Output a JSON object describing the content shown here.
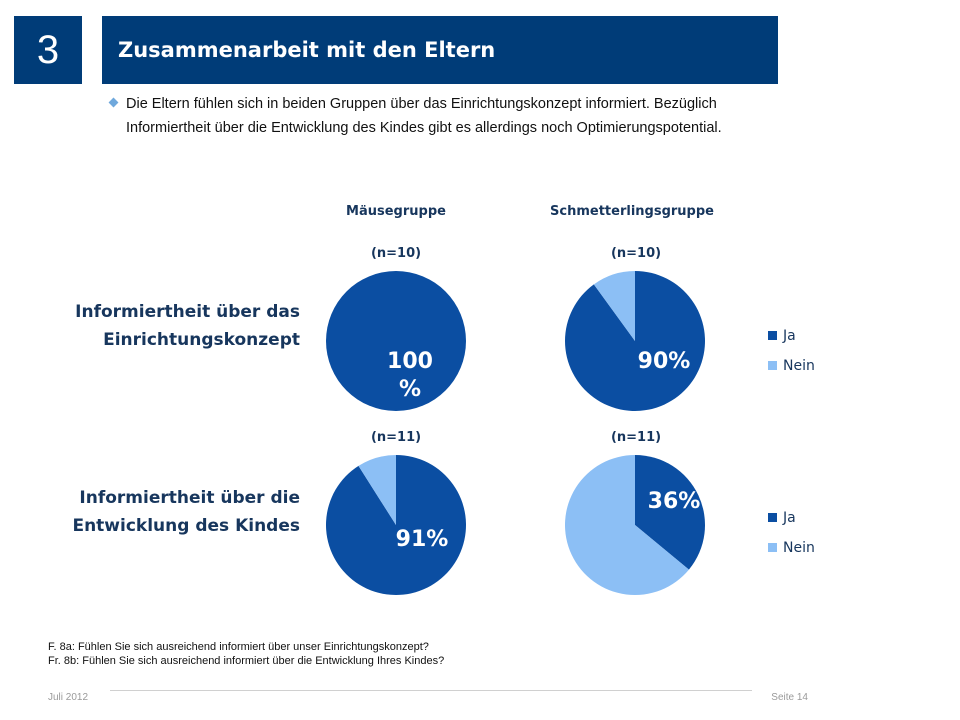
{
  "slide": {
    "number": "3",
    "title": "Zusammenarbeit mit den Eltern",
    "bullet": "Die Eltern fühlen sich in beiden Gruppen über das Einrichtungskonzept informiert. Bezüglich Informiertheit über die Entwicklung des Kindes gibt es allerdings noch Optimierungspotential.",
    "footnote_line1": "F. 8a:  Fühlen Sie sich ausreichend informiert über unser Einrichtungskonzept?",
    "footnote_line2": "Fr. 8b: Fühlen Sie sich ausreichend informiert über die Entwicklung Ihres Kindes?",
    "footer_date": "Juli 2012",
    "footer_page": "Seite 14"
  },
  "columns": [
    "Mäusegruppe",
    "Schmetterlingsgruppe"
  ],
  "rows": [
    {
      "label_line1": "Informiertheit über das",
      "label_line2": "Einrichtungskonzept"
    },
    {
      "label_line1": "Informiertheit über die",
      "label_line2": "Entwicklung des Kindes"
    }
  ],
  "colors": {
    "ja": "#0b4ea2",
    "nein": "#8cbff5",
    "title_bg": "#003c78",
    "label": "#17365d"
  },
  "chart_data": [
    {
      "type": "pie",
      "row": 0,
      "column": "Mäusegruppe",
      "n_label": "(n=10)",
      "labels": [
        "Ja",
        "Nein"
      ],
      "values": [
        100,
        0
      ],
      "value_label_line1": "100",
      "value_label_line2": "%"
    },
    {
      "type": "pie",
      "row": 0,
      "column": "Schmetterlingsgruppe",
      "n_label": "(n=10)",
      "labels": [
        "Ja",
        "Nein"
      ],
      "values": [
        90,
        10
      ],
      "value_label_line1": "90%",
      "value_label_line2": "",
      "legend": [
        "Ja",
        "Nein"
      ]
    },
    {
      "type": "pie",
      "row": 1,
      "column": "Mäusegruppe",
      "n_label": "(n=11)",
      "labels": [
        "Ja",
        "Nein"
      ],
      "values": [
        91,
        9
      ],
      "value_label_line1": "91%",
      "value_label_line2": ""
    },
    {
      "type": "pie",
      "row": 1,
      "column": "Schmetterlingsgruppe",
      "n_label": "(n=11)",
      "labels": [
        "Ja",
        "Nein"
      ],
      "values": [
        36,
        64
      ],
      "value_label_line1": "36%",
      "value_label_line2": "",
      "legend": [
        "Ja",
        "Nein"
      ]
    }
  ]
}
